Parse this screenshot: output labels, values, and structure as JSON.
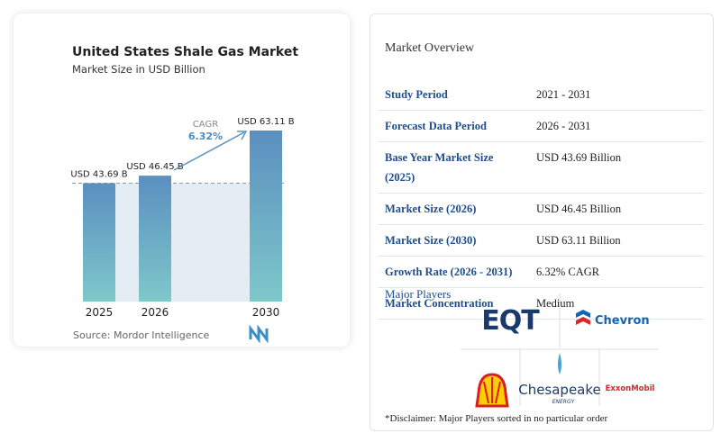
{
  "chart_data": {
    "type": "bar",
    "title": "United States Shale Gas Market",
    "subtitle": "Market Size in USD Billion",
    "categories": [
      "2025",
      "2026",
      "2030"
    ],
    "values": [
      43.69,
      46.45,
      63.11
    ],
    "value_labels": [
      "USD 43.69 B",
      "USD 46.45 B",
      "USD 63.11 B"
    ],
    "annotation": {
      "label": "CAGR",
      "value": "6.32%"
    },
    "source": "Source: Mordor Intelligence",
    "color": "#5b93c0"
  },
  "overview": {
    "title": "Market Overview",
    "rows": [
      [
        "Study Period",
        "2021 - 2031"
      ],
      [
        "Forecast Data Period",
        "2026 - 2031"
      ],
      [
        "Base Year Market Size (2025)",
        "USD 43.69 Billion"
      ],
      [
        "Market Size (2026)",
        "USD 46.45 Billion"
      ],
      [
        "Market Size (2030)",
        "USD 63.11 Billion"
      ],
      [
        "Growth Rate (2026 - 2031)",
        "6.32% CAGR"
      ],
      [
        "Market Concentration",
        "Medium"
      ]
    ]
  },
  "players": {
    "title": "Major Players",
    "eqt": "EQT",
    "chevron": "Chevron",
    "chesapeake": "Chesapeake",
    "chesapeake_sub": "ENERGY",
    "exxonmobil": "ExxonMobil",
    "disclaimer": "*Disclaimer: Major Players sorted in no particular order"
  }
}
